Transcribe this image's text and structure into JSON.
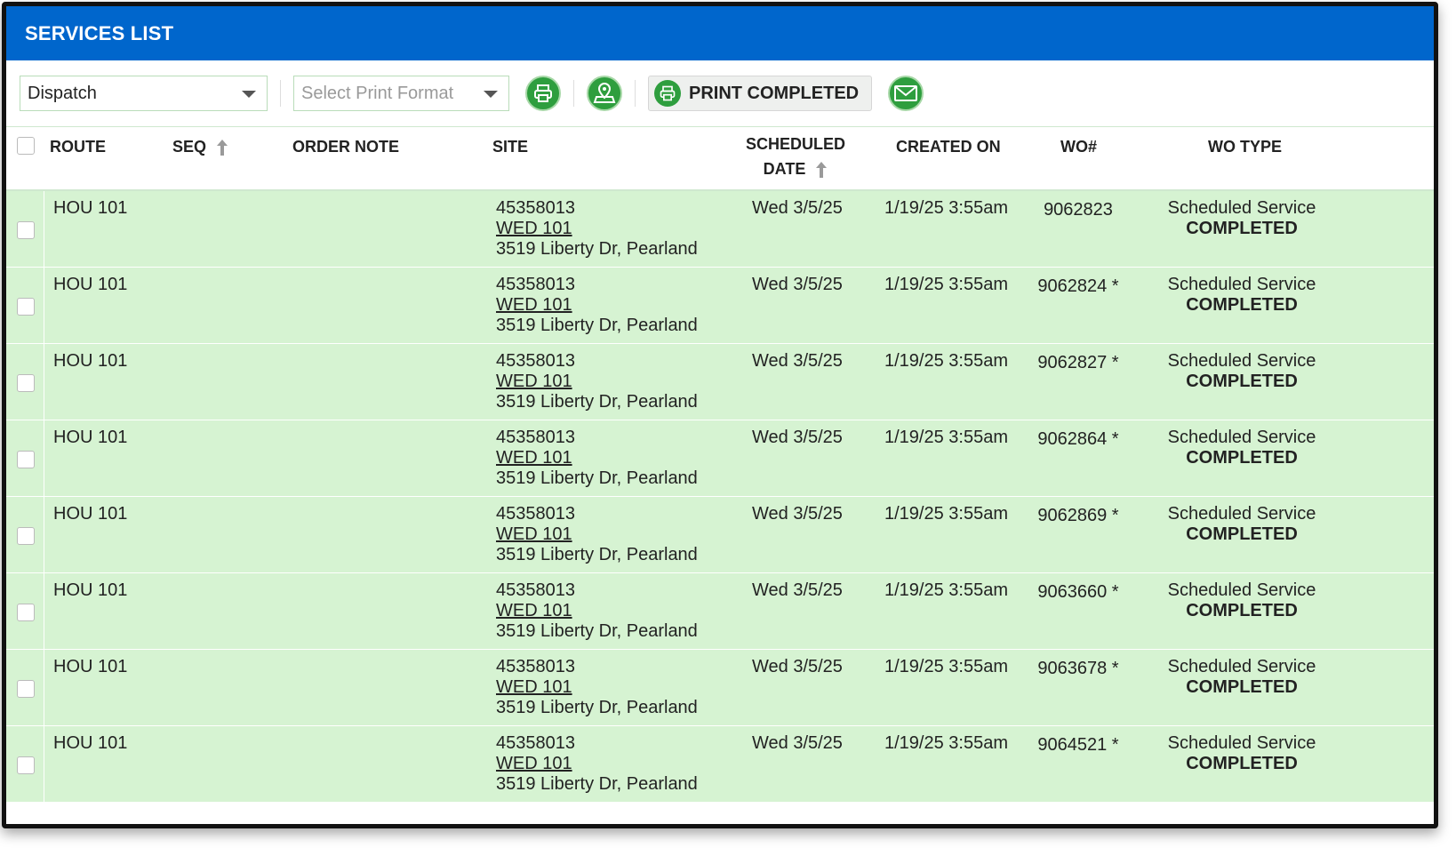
{
  "title": "SERVICES LIST",
  "toolbar": {
    "view_select": "Dispatch",
    "print_format_placeholder": "Select Print Format",
    "print_completed_label": "PRINT COMPLETED"
  },
  "columns": {
    "route": "ROUTE",
    "seq": "SEQ",
    "order_note": "ORDER NOTE",
    "site": "SITE",
    "scheduled_line1": "SCHEDULED",
    "scheduled_line2": "DATE",
    "created_on": "CREATED ON",
    "wo": "WO#",
    "wo_type": "WO TYPE"
  },
  "rows": [
    {
      "route": "HOU 101",
      "site_id": "45358013",
      "site_name": "WED 101",
      "site_address": "3519 Liberty Dr, Pearland",
      "scheduled": "Wed 3/5/25",
      "created": "1/19/25 3:55am",
      "wo": "9062823",
      "wo_type": "Scheduled Service",
      "status": "COMPLETED"
    },
    {
      "route": "HOU 101",
      "site_id": "45358013",
      "site_name": "WED 101",
      "site_address": "3519 Liberty Dr, Pearland",
      "scheduled": "Wed 3/5/25",
      "created": "1/19/25 3:55am",
      "wo": "9062824 *",
      "wo_type": "Scheduled Service",
      "status": "COMPLETED"
    },
    {
      "route": "HOU 101",
      "site_id": "45358013",
      "site_name": "WED 101",
      "site_address": "3519 Liberty Dr, Pearland",
      "scheduled": "Wed 3/5/25",
      "created": "1/19/25 3:55am",
      "wo": "9062827 *",
      "wo_type": "Scheduled Service",
      "status": "COMPLETED"
    },
    {
      "route": "HOU 101",
      "site_id": "45358013",
      "site_name": "WED 101",
      "site_address": "3519 Liberty Dr, Pearland",
      "scheduled": "Wed 3/5/25",
      "created": "1/19/25 3:55am",
      "wo": "9062864 *",
      "wo_type": "Scheduled Service",
      "status": "COMPLETED"
    },
    {
      "route": "HOU 101",
      "site_id": "45358013",
      "site_name": "WED 101",
      "site_address": "3519 Liberty Dr, Pearland",
      "scheduled": "Wed 3/5/25",
      "created": "1/19/25 3:55am",
      "wo": "9062869 *",
      "wo_type": "Scheduled Service",
      "status": "COMPLETED"
    },
    {
      "route": "HOU 101",
      "site_id": "45358013",
      "site_name": "WED 101",
      "site_address": "3519 Liberty Dr, Pearland",
      "scheduled": "Wed 3/5/25",
      "created": "1/19/25 3:55am",
      "wo": "9063660 *",
      "wo_type": "Scheduled Service",
      "status": "COMPLETED"
    },
    {
      "route": "HOU 101",
      "site_id": "45358013",
      "site_name": "WED 101",
      "site_address": "3519 Liberty Dr, Pearland",
      "scheduled": "Wed 3/5/25",
      "created": "1/19/25 3:55am",
      "wo": "9063678 *",
      "wo_type": "Scheduled Service",
      "status": "COMPLETED"
    },
    {
      "route": "HOU 101",
      "site_id": "45358013",
      "site_name": "WED 101",
      "site_address": "3519 Liberty Dr, Pearland",
      "scheduled": "Wed 3/5/25",
      "created": "1/19/25 3:55am",
      "wo": "9064521 *",
      "wo_type": "Scheduled Service",
      "status": "COMPLETED"
    }
  ],
  "colors": {
    "header_blue": "#0066cc",
    "row_green": "#d6f3d2",
    "button_green": "#2e9e3e"
  },
  "icons": [
    "printer-icon",
    "map-pin-icon",
    "print-completed-icon",
    "email-icon",
    "sort-up-icon",
    "caret-down-icon"
  ]
}
